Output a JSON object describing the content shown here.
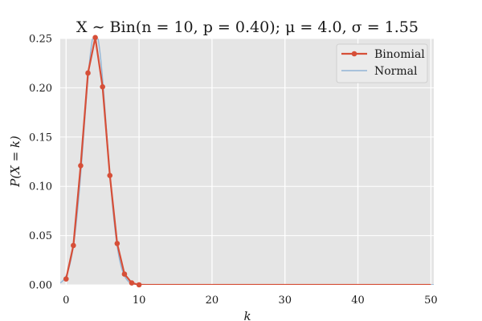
{
  "chart_data": {
    "type": "line",
    "title": "X ∼ Bin(n = 10, p = 0.40);  μ = 4.0,  σ = 1.55",
    "xlabel": "k",
    "ylabel": "P(X = k)",
    "xlim": [
      -0.8,
      50.4
    ],
    "ylim": [
      0,
      0.25
    ],
    "xticks": [
      0,
      10,
      20,
      30,
      40,
      50
    ],
    "yticks": [
      0,
      0.05,
      0.1,
      0.15,
      0.2,
      0.25
    ],
    "ytick_labels": [
      "0.00",
      "0.05",
      "0.10",
      "0.15",
      "0.20",
      "0.25"
    ],
    "grid": true,
    "legend_position": "top-right",
    "series": [
      {
        "name": "Binomial",
        "color": "#d64f38",
        "style": "line-markers",
        "x": [
          0,
          1,
          2,
          3,
          4,
          5,
          6,
          7,
          8,
          9,
          10,
          11,
          12,
          13,
          14,
          15,
          16,
          17,
          18,
          19,
          20,
          21,
          22,
          23,
          24,
          25,
          26,
          27,
          28,
          29,
          30,
          31,
          32,
          33,
          34,
          35,
          36,
          37,
          38,
          39,
          40,
          41,
          42,
          43,
          44,
          45,
          46,
          47,
          48,
          49,
          50
        ],
        "values": [
          0.006,
          0.04,
          0.121,
          0.215,
          0.251,
          0.201,
          0.111,
          0.042,
          0.011,
          0.002,
          0.0001,
          0,
          0,
          0,
          0,
          0,
          0,
          0,
          0,
          0,
          0,
          0,
          0,
          0,
          0,
          0,
          0,
          0,
          0,
          0,
          0,
          0,
          0,
          0,
          0,
          0,
          0,
          0,
          0,
          0,
          0,
          0,
          0,
          0,
          0,
          0,
          0,
          0,
          0,
          0,
          0
        ]
      },
      {
        "name": "Normal",
        "color": "#92b5d6",
        "style": "line",
        "mean": 4.0,
        "sd": 1.55
      }
    ]
  }
}
